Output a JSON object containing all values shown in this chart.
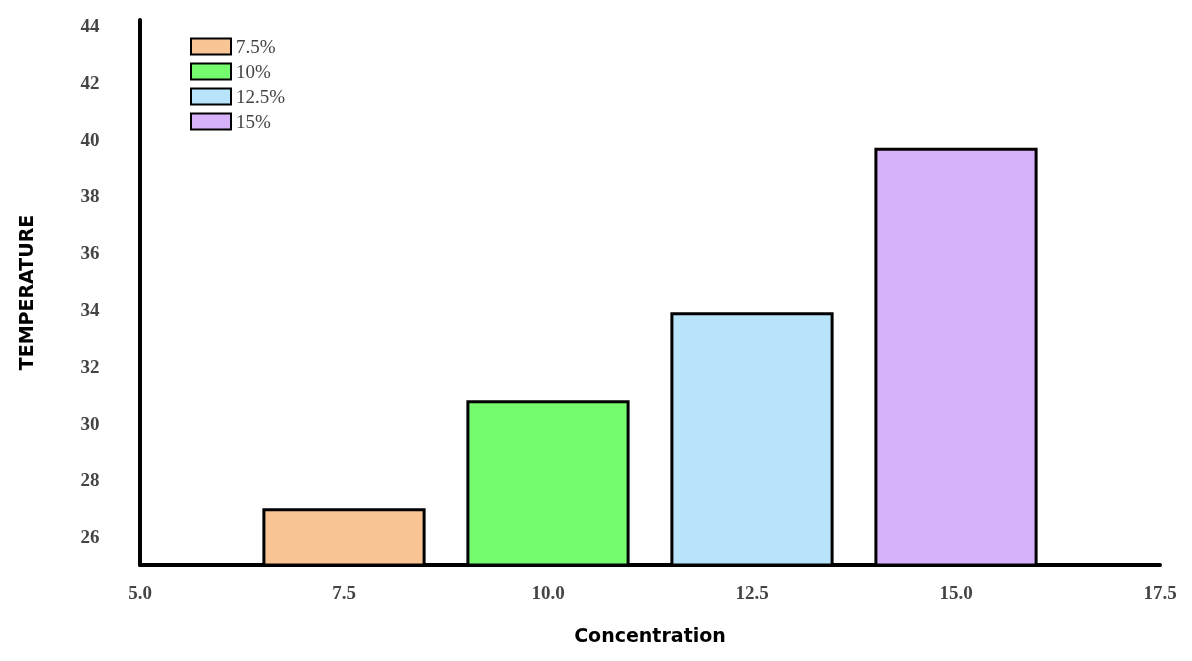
{
  "chart_data": {
    "type": "bar",
    "xlabel": "Concentration",
    "ylabel": "TEMPERATURE",
    "series": [
      {
        "name": "7.5%",
        "color": "#f9c594",
        "x": [
          7.5
        ],
        "values": [
          27.0
        ]
      },
      {
        "name": "10%",
        "color": "#74fb6e",
        "x": [
          10.0
        ],
        "values": [
          30.8
        ]
      },
      {
        "name": "12.5%",
        "color": "#b7e4fa",
        "x": [
          12.5
        ],
        "values": [
          33.9
        ]
      },
      {
        "name": "15%",
        "color": "#d8b1fb",
        "x": [
          15.0
        ],
        "values": [
          39.7
        ]
      }
    ],
    "xlim": [
      5.0,
      17.5
    ],
    "xticks": [
      {
        "value": 5,
        "label": "5.0"
      },
      {
        "value": 7.5,
        "label": "7.5"
      },
      {
        "value": 10,
        "label": "10.0"
      },
      {
        "value": 12.5,
        "label": "12.5"
      },
      {
        "value": 15,
        "label": "15.0"
      },
      {
        "value": 17.5,
        "label": "17.5"
      }
    ],
    "ylim": [
      25,
      44.2
    ],
    "yticks": [
      26,
      28,
      30,
      32,
      34,
      36,
      38,
      40,
      42,
      44
    ],
    "grid": false,
    "legend": "top left"
  }
}
